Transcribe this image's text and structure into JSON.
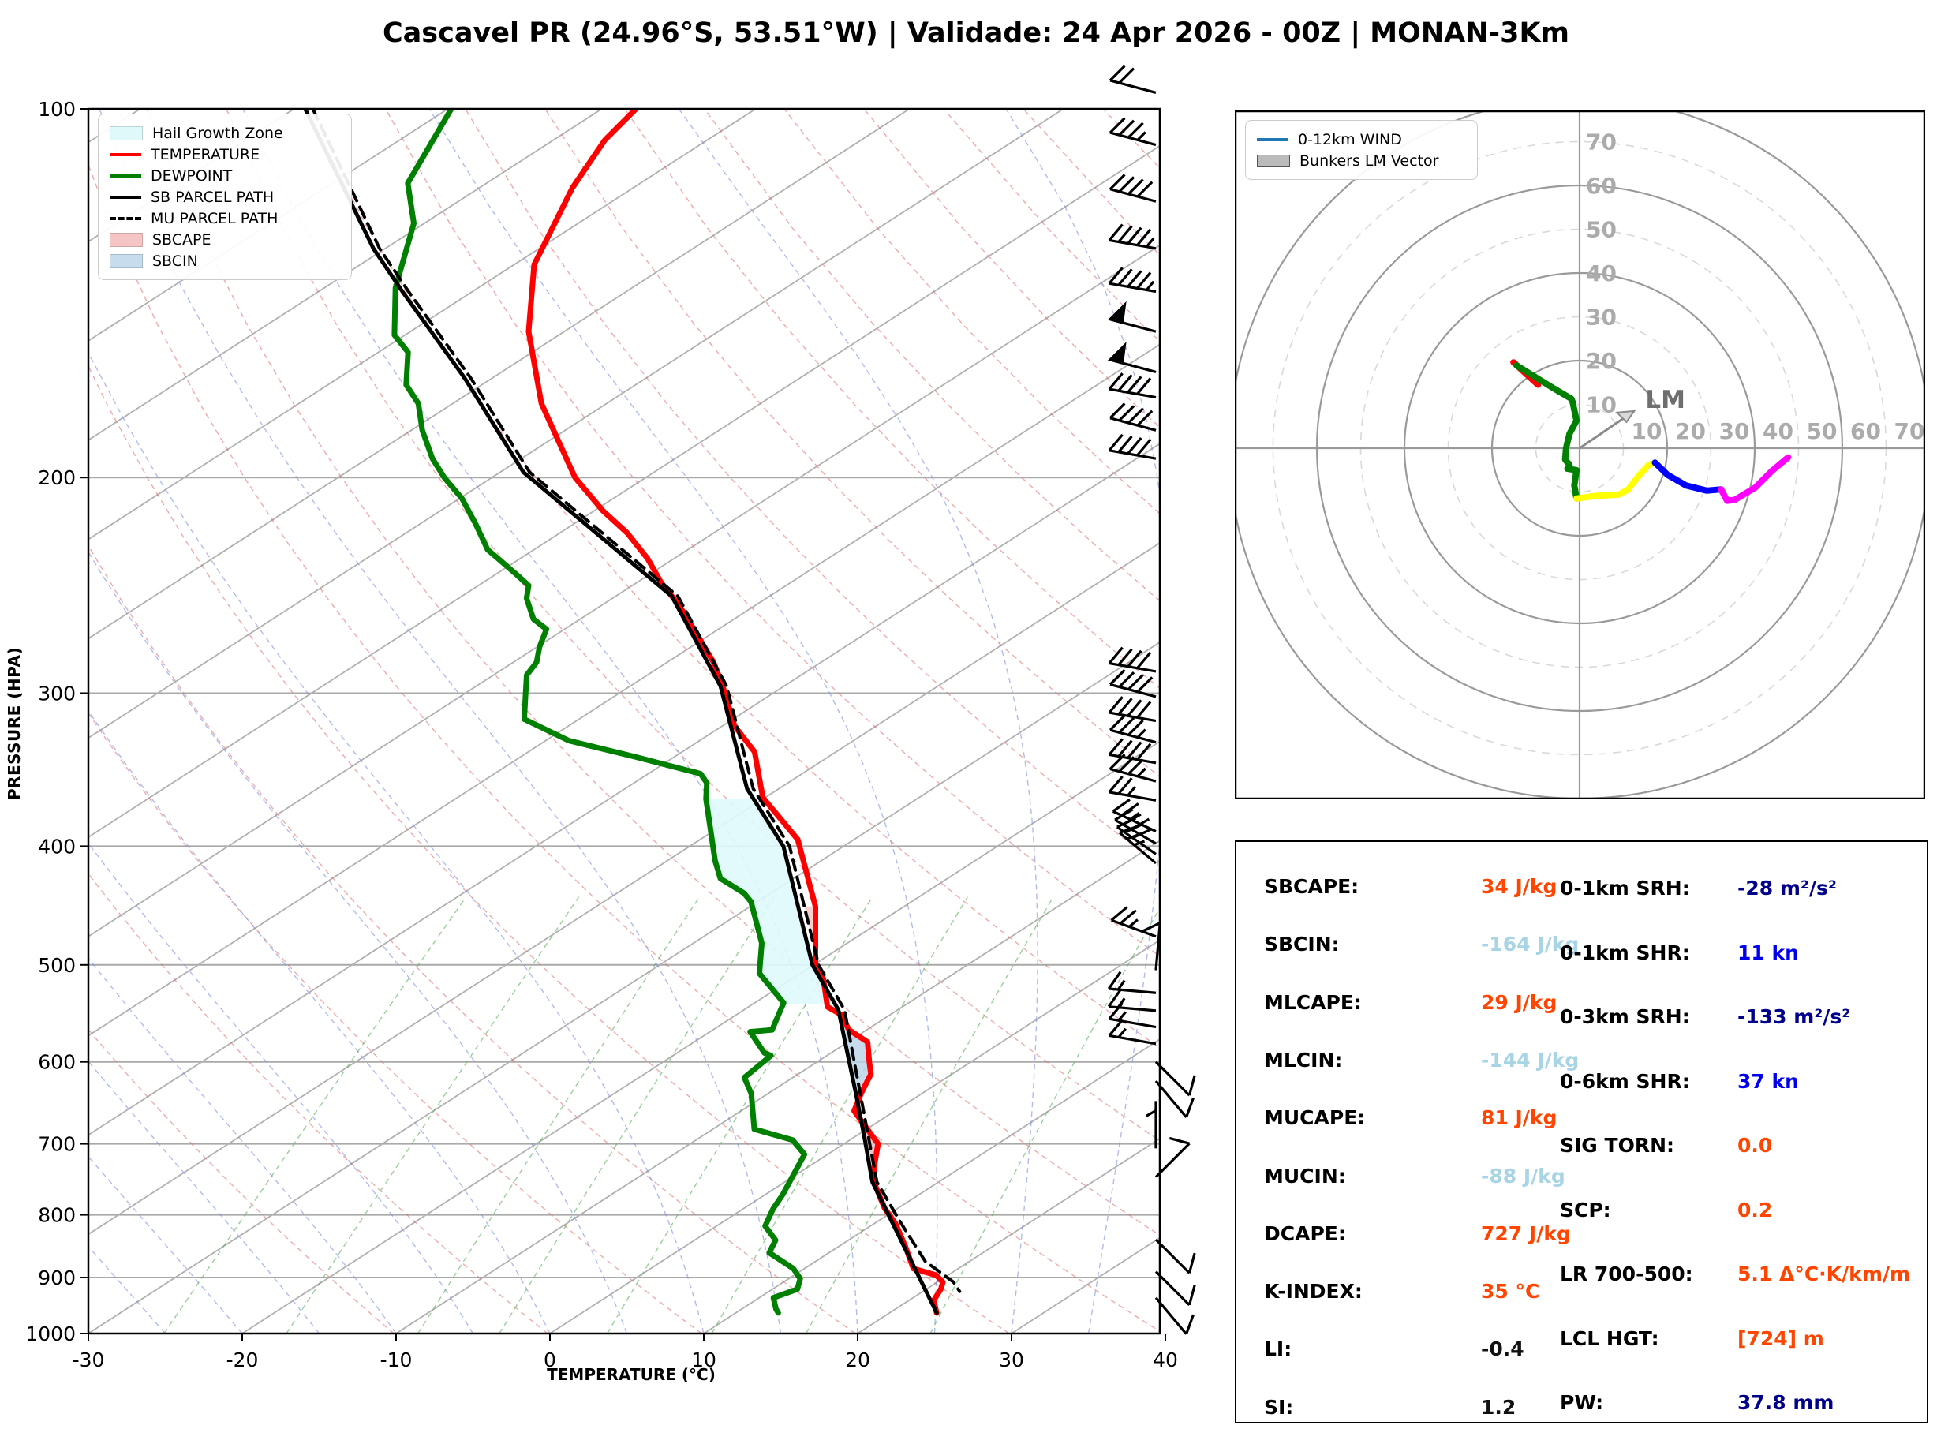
{
  "title": "Cascavel PR (24.96°S, 53.51°W) | Validade: 24 Apr 2026 - 00Z | MONAN-3Km",
  "skewt": {
    "xlabel": "TEMPERATURE (°C)",
    "ylabel": "PRESSURE (HPA)",
    "x_ticks": [
      -30,
      -20,
      -10,
      0,
      10,
      20,
      30,
      40
    ],
    "y_ticks": [
      100,
      200,
      300,
      400,
      500,
      600,
      700,
      800,
      900,
      1000
    ],
    "legend": [
      {
        "label": "Hail Growth Zone",
        "swatch": "patch",
        "color": "#DFF9FB"
      },
      {
        "label": "TEMPERATURE",
        "swatch": "line",
        "color": "#FF0000"
      },
      {
        "label": "DEWPOINT",
        "swatch": "line",
        "color": "#008000"
      },
      {
        "label": "SB PARCEL PATH",
        "swatch": "line",
        "color": "#000000"
      },
      {
        "label": "MU PARCEL PATH",
        "swatch": "dash",
        "color": "#000000"
      },
      {
        "label": "SBCAPE",
        "swatch": "patch",
        "color": "#F5C4C4"
      },
      {
        "label": "SBCIN",
        "swatch": "patch",
        "color": "#C7DCEC"
      }
    ]
  },
  "hodograph": {
    "legend": [
      {
        "label": "0-12km WIND",
        "swatch": "line",
        "color": "#1f77b4"
      },
      {
        "label": "Bunkers LM Vector",
        "swatch": "patch-border",
        "color": "#bbbbbb"
      }
    ],
    "ring_labels": [
      10,
      20,
      30,
      40,
      50,
      60,
      70
    ],
    "lm_label": "LM"
  },
  "indices": {
    "left": [
      {
        "label": "SBCAPE:",
        "value": "34 J/kg",
        "color": "orange"
      },
      {
        "label": "SBCIN:",
        "value": "-164 J/kg",
        "color": "lightblue"
      },
      {
        "label": "MLCAPE:",
        "value": "29 J/kg",
        "color": "orange"
      },
      {
        "label": "MLCIN:",
        "value": "-144 J/kg",
        "color": "lightblue"
      },
      {
        "label": "MUCAPE:",
        "value": "81 J/kg",
        "color": "orange"
      },
      {
        "label": "MUCIN:",
        "value": "-88 J/kg",
        "color": "lightblue"
      },
      {
        "label": "DCAPE:",
        "value": "727 J/kg",
        "color": "orange"
      },
      {
        "label": "K-INDEX:",
        "value": "35 °C",
        "color": "orange"
      },
      {
        "label": "LI:",
        "value": "-0.4",
        "color": "black"
      },
      {
        "label": "SI:",
        "value": "1.2",
        "color": "black"
      }
    ],
    "right": [
      {
        "label": "0-1km SRH:",
        "value": "-28 m²/s²",
        "color": "navy"
      },
      {
        "label": "0-1km SHR:",
        "value": "11 kn",
        "color": "blue"
      },
      {
        "label": "0-3km SRH:",
        "value": "-133 m²/s²",
        "color": "navy"
      },
      {
        "label": "0-6km SHR:",
        "value": "37 kn",
        "color": "blue"
      },
      {
        "label": "SIG TORN:",
        "value": "0.0",
        "color": "orange"
      },
      {
        "label": "SCP:",
        "value": "0.2",
        "color": "orange"
      },
      {
        "label": "LR 700-500:",
        "value": "5.1 Δ°C·K/km/m",
        "color": "orange"
      },
      {
        "label": "LCL HGT:",
        "value": "[724] m",
        "color": "orange"
      },
      {
        "label": "PW:",
        "value": "37.8 mm",
        "color": "navy"
      }
    ]
  },
  "chart_data": [
    {
      "type": "line",
      "name": "skewt-sounding",
      "xlabel": "TEMPERATURE (°C)",
      "ylabel": "PRESSURE (HPA)",
      "xlim": [
        -30,
        40
      ],
      "ylim": [
        1000,
        100
      ],
      "series": [
        {
          "name": "TEMPERATURE",
          "color": "#FF0000",
          "width": 7,
          "dash": null,
          "points": [
            [
              100,
              -74
            ],
            [
              106,
              -74
            ],
            [
              116,
              -73
            ],
            [
              134,
              -70.5
            ],
            [
              152,
              -66.5
            ],
            [
              174,
              -61
            ],
            [
              200,
              -54
            ],
            [
              213,
              -50
            ],
            [
              222,
              -47
            ],
            [
              233,
              -44
            ],
            [
              244,
              -41.5
            ],
            [
              254,
              -39
            ],
            [
              268,
              -36
            ],
            [
              283,
              -33
            ],
            [
              295,
              -31
            ],
            [
              319,
              -27.5
            ],
            [
              335,
              -24.5
            ],
            [
              365,
              -21
            ],
            [
              395,
              -16
            ],
            [
              448,
              -10.5
            ],
            [
              500,
              -6.7
            ],
            [
              513,
              -5.3
            ],
            [
              541,
              -3.2
            ],
            [
              549,
              -1.8
            ],
            [
              565,
              -0.3
            ],
            [
              578,
              1.7
            ],
            [
              600,
              3.1
            ],
            [
              614,
              4
            ],
            [
              636,
              4.6
            ],
            [
              658,
              5.3
            ],
            [
              700,
              9
            ],
            [
              725,
              10
            ],
            [
              752,
              11.2
            ],
            [
              790,
              13.6
            ],
            [
              813,
              15.3
            ],
            [
              850,
              17.5
            ],
            [
              885,
              19.4
            ],
            [
              896,
              21.3
            ],
            [
              908,
              22.2
            ],
            [
              919,
              22.5
            ],
            [
              940,
              22.8
            ],
            [
              962,
              23.8
            ]
          ]
        },
        {
          "name": "DEWPOINT",
          "color": "#008000",
          "width": 7,
          "dash": null,
          "points": [
            [
              100,
              -86
            ],
            [
              115,
              -84
            ],
            [
              124,
              -81
            ],
            [
              140,
              -78
            ],
            [
              153,
              -75
            ],
            [
              158,
              -73
            ],
            [
              168,
              -71
            ],
            [
              174,
              -69
            ],
            [
              183,
              -67
            ],
            [
              193,
              -64.5
            ],
            [
              200,
              -62.5
            ],
            [
              208,
              -60
            ],
            [
              218,
              -57.5
            ],
            [
              229,
              -55
            ],
            [
              240,
              -51.5
            ],
            [
              245,
              -50
            ],
            [
              251,
              -49.3
            ],
            [
              261,
              -47.5
            ],
            [
              266,
              -46
            ],
            [
              275,
              -45.3
            ],
            [
              283,
              -44.5
            ],
            [
              290,
              -44.3
            ],
            [
              315,
              -41.6
            ],
            [
              328,
              -37.3
            ],
            [
              338,
              -32
            ],
            [
              349,
              -26.6
            ],
            [
              355,
              -25.6
            ],
            [
              366,
              -24.6
            ],
            [
              411,
              -20
            ],
            [
              425,
              -18.5
            ],
            [
              437,
              -16
            ],
            [
              444,
              -15
            ],
            [
              480,
              -11.6
            ],
            [
              508,
              -9.8
            ],
            [
              537,
              -6.3
            ],
            [
              565,
              -5.3
            ],
            [
              567,
              -6.6
            ],
            [
              590,
              -4.3
            ],
            [
              593,
              -3.7
            ],
            [
              618,
              -4
            ],
            [
              637,
              -2.5
            ],
            [
              681,
              0
            ],
            [
              695,
              3.2
            ],
            [
              714,
              4.9
            ],
            [
              770,
              6.1
            ],
            [
              791,
              6.4
            ],
            [
              817,
              7
            ],
            [
              839,
              8.6
            ],
            [
              859,
              9
            ],
            [
              885,
              11.6
            ],
            [
              902,
              12.7
            ],
            [
              920,
              13.2
            ],
            [
              935,
              12.2
            ],
            [
              955,
              13.1
            ],
            [
              962,
              13.5
            ]
          ]
        },
        {
          "name": "SB PARCEL PATH",
          "color": "#000000",
          "width": 5,
          "dash": null,
          "points": [
            [
              100,
              -95.5
            ],
            [
              130,
              -82
            ],
            [
              141,
              -77.3
            ],
            [
              166,
              -67.6
            ],
            [
              198,
              -57.7
            ],
            [
              250,
              -40
            ],
            [
              296,
              -31
            ],
            [
              359,
              -22.6
            ],
            [
              400,
              -16.5
            ],
            [
              500,
              -6.9
            ],
            [
              544,
              -2.3
            ],
            [
              637,
              4.3
            ],
            [
              690,
              7.6
            ],
            [
              752,
              11.1
            ],
            [
              962,
              23.8
            ]
          ]
        },
        {
          "name": "MU PARCEL PATH",
          "color": "#000000",
          "width": 4,
          "dash": "14,9",
          "points": [
            [
              100,
              -95
            ],
            [
              130,
              -81.6
            ],
            [
              141,
              -76.9
            ],
            [
              166,
              -67.2
            ],
            [
              198,
              -57.3
            ],
            [
              250,
              -39.6
            ],
            [
              296,
              -30.6
            ],
            [
              359,
              -22.2
            ],
            [
              400,
              -16.1
            ],
            [
              500,
              -6.5
            ],
            [
              544,
              -1.9
            ],
            [
              752,
              11.4
            ],
            [
              812,
              15.6
            ],
            [
              873,
              19.7
            ],
            [
              908,
              22.9
            ],
            [
              924,
              23.9
            ]
          ]
        }
      ],
      "regions": [
        {
          "name": "Hail Growth Zone",
          "color": "#DFF9FB",
          "opacity": 0.9,
          "p_top": 366,
          "p_bottom": 538,
          "left": "DEWPOINT",
          "right": "SB PARCEL PATH"
        },
        {
          "name": "SBCIN",
          "color": "#B9D2E8",
          "opacity": 0.8,
          "p_top": 546,
          "p_bottom": 871,
          "left": "SB PARCEL PATH",
          "right": "TEMPERATURE"
        },
        {
          "name": "SBCAPE",
          "color": "#F5BFBF",
          "opacity": 0.75,
          "p_top": 448,
          "p_bottom": 477,
          "left": "TEMPERATURE",
          "right": "MU PARCEL PATH"
        },
        {
          "name": "SBCAPE",
          "color": "#F5BFBF",
          "opacity": 0.75,
          "p_top": 664,
          "p_bottom": 742,
          "left": "TEMPERATURE",
          "right": "SB PARCEL PATH"
        }
      ],
      "wind_barbs": [
        [
          97,
          285,
          20
        ],
        [
          107,
          285,
          35
        ],
        [
          119,
          285,
          40
        ],
        [
          130,
          280,
          45
        ],
        [
          141,
          280,
          45
        ],
        [
          152,
          285,
          50
        ],
        [
          164,
          285,
          50
        ],
        [
          172,
          280,
          40
        ],
        [
          183,
          285,
          40
        ],
        [
          193,
          280,
          40
        ],
        [
          288,
          280,
          40
        ],
        [
          302,
          285,
          40
        ],
        [
          316,
          280,
          40
        ],
        [
          329,
          285,
          35
        ],
        [
          342,
          280,
          40
        ],
        [
          354,
          285,
          35
        ],
        [
          367,
          280,
          25
        ],
        [
          389,
          295,
          25
        ],
        [
          398,
          300,
          30
        ],
        [
          406,
          305,
          30
        ],
        [
          413,
          310,
          25
        ],
        [
          474,
          290,
          25
        ],
        [
          505,
          5,
          10
        ],
        [
          527,
          275,
          15
        ],
        [
          545,
          275,
          15
        ],
        [
          562,
          280,
          15
        ],
        [
          580,
          280,
          15
        ],
        [
          600,
          135,
          10
        ],
        [
          622,
          140,
          10
        ],
        [
          706,
          0,
          5
        ],
        [
          745,
          45,
          10
        ],
        [
          838,
          135,
          10
        ],
        [
          890,
          135,
          10
        ],
        [
          935,
          140,
          10
        ]
      ]
    },
    {
      "type": "line",
      "name": "hodograph",
      "units": "kn",
      "rings": {
        "solid_every": 20,
        "dashed_every": 10,
        "max": 80
      },
      "segments": [
        {
          "name": "9-12km",
          "color": "#FF0000",
          "points": [
            [
              -15.1,
              19.6
            ],
            [
              -9.5,
              14.5
            ]
          ]
        },
        {
          "name": "0-12km wind (upper)",
          "color": "#008000",
          "points": [
            [
              -14.4,
              18.9
            ],
            [
              -6.3,
              13.9
            ],
            [
              -1.9,
              11.3
            ],
            [
              -1.6,
              10.6
            ],
            [
              -0.7,
              6.3
            ],
            [
              -2.3,
              3.3
            ],
            [
              -3.1,
              0
            ],
            [
              -3.3,
              -2.6
            ],
            [
              -2.3,
              -3.8
            ],
            [
              -2.8,
              -4.7
            ],
            [
              -0.7,
              -5
            ],
            [
              -1.2,
              -8.5
            ],
            [
              -0.7,
              -11.5
            ]
          ]
        },
        {
          "name": "low",
          "color": "#FFFF00",
          "points": [
            [
              -0.7,
              -11.5
            ],
            [
              3.6,
              -10.9
            ],
            [
              9,
              -10.6
            ],
            [
              11.1,
              -9.4
            ],
            [
              13.7,
              -6.1
            ],
            [
              15.8,
              -3.8
            ],
            [
              17.2,
              -3.3
            ]
          ]
        },
        {
          "name": "mid",
          "color": "#0000FF",
          "points": [
            [
              17.2,
              -3.3
            ],
            [
              20.1,
              -6.1
            ],
            [
              24.3,
              -8.5
            ],
            [
              29,
              -9.7
            ],
            [
              32.3,
              -9.4
            ]
          ]
        },
        {
          "name": "upper",
          "color": "#FF00FF",
          "points": [
            [
              32.3,
              -9.4
            ],
            [
              33.7,
              -12
            ],
            [
              35.4,
              -11.8
            ],
            [
              40.1,
              -9
            ],
            [
              43.9,
              -5.2
            ],
            [
              47.6,
              -2.1
            ]
          ]
        }
      ],
      "lm_vector": {
        "u": 12.5,
        "v": 8.5,
        "label": "LM"
      }
    }
  ]
}
